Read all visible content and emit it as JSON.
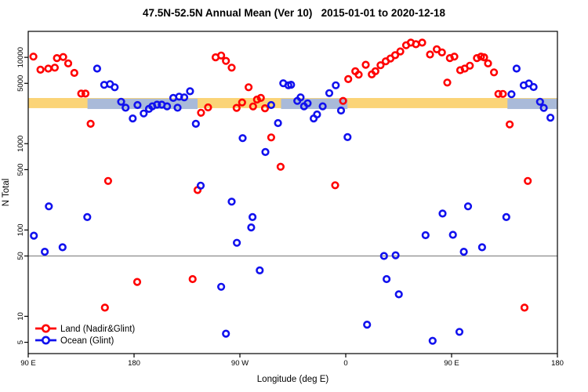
{
  "title": "47.5N-52.5N Annual Mean (Ver 10)   2015-01-01 to 2020-12-18",
  "colors": {
    "land": "#FF0000",
    "ocean": "#1111EE",
    "land_band": "#FBD477",
    "ocean_band": "#A9BAD9",
    "reference_line": "#8C8C8C",
    "axis": "#000000",
    "background": "#FFFFFF"
  },
  "chart_data": {
    "type": "scatter",
    "title": "47.5N-52.5N Annual Mean (Ver 10)   2015-01-01 to 2020-12-18",
    "xlabel": "Longitude (deg E)",
    "ylabel": "N Total",
    "y_scale": "log",
    "ylim": [
      3.7,
      20000
    ],
    "xlim": [
      90,
      540
    ],
    "x_axis_note": "longitude wraps: 90E eastward around the globe to 180",
    "x_ticks": [
      {
        "pos": 90,
        "label": "90 E"
      },
      {
        "pos": 180,
        "label": "180"
      },
      {
        "pos": 270,
        "label": "90 W"
      },
      {
        "pos": 360,
        "label": "0"
      },
      {
        "pos": 450,
        "label": "90 E"
      },
      {
        "pos": 540,
        "label": "180"
      }
    ],
    "y_ticks": [
      5,
      10,
      50,
      100,
      500,
      1000,
      5000,
      10000
    ],
    "reference_line": {
      "value": 50
    },
    "bands": {
      "land_reference_band": {
        "value_range": [
          2580,
          3380
        ],
        "x_range": [
          90,
          540
        ]
      },
      "ocean_reference_band": {
        "value_range": [
          2520,
          3320
        ],
        "segments": [
          [
            140.4,
            234
          ],
          [
            305,
            361.5
          ],
          [
            497.5,
            540
          ]
        ]
      }
    },
    "legend": {
      "position": "bottom-left"
    },
    "series": [
      {
        "name": "Land (Nadir&Glint)",
        "marker": "open-circle",
        "points": [
          [
            94.4,
            10200
          ],
          [
            100.4,
            7200
          ],
          [
            107.1,
            7400
          ],
          [
            112.6,
            7600
          ],
          [
            114.4,
            9800
          ],
          [
            119.7,
            10100
          ],
          [
            124,
            8500
          ],
          [
            129.2,
            6600
          ],
          [
            135.1,
            3800
          ],
          [
            138.7,
            3800
          ],
          [
            143.1,
            1700
          ],
          [
            155.2,
            12.6
          ],
          [
            157.9,
            370
          ],
          [
            182.7,
            25
          ],
          [
            229.8,
            27
          ],
          [
            234,
            290
          ],
          [
            236.9,
            2280
          ],
          [
            242.9,
            2630
          ],
          [
            249.3,
            10000
          ],
          [
            254.1,
            10500
          ],
          [
            258.1,
            9100
          ],
          [
            263,
            7600
          ],
          [
            267.2,
            2600
          ],
          [
            271.9,
            3000
          ],
          [
            277.4,
            4500
          ],
          [
            281.2,
            2700
          ],
          [
            284.5,
            3240
          ],
          [
            287.8,
            3390
          ],
          [
            291.3,
            2570
          ],
          [
            296.6,
            1180
          ],
          [
            304.6,
            540
          ],
          [
            351,
            330
          ],
          [
            357.7,
            3130
          ],
          [
            362.1,
            5600
          ],
          [
            368.1,
            6900
          ],
          [
            371,
            6300
          ],
          [
            377,
            8200
          ],
          [
            382.1,
            6340
          ],
          [
            385.2,
            6900
          ],
          [
            389.6,
            8100
          ],
          [
            394,
            9000
          ],
          [
            398,
            9700
          ],
          [
            402,
            10600
          ],
          [
            406.4,
            11700
          ],
          [
            411.3,
            13800
          ],
          [
            415.3,
            14800
          ],
          [
            419.7,
            14200
          ],
          [
            425,
            14800
          ],
          [
            431.7,
            10800
          ],
          [
            437.4,
            12400
          ],
          [
            441.8,
            11400
          ],
          [
            446.3,
            5100
          ],
          [
            448.5,
            9800
          ],
          [
            452.3,
            10200
          ],
          [
            457.3,
            7100
          ],
          [
            461.1,
            7400
          ],
          [
            465.5,
            8000
          ],
          [
            471.5,
            9800
          ],
          [
            475,
            10200
          ],
          [
            477.7,
            10000
          ],
          [
            481,
            8500
          ],
          [
            486.1,
            6700
          ],
          [
            489.8,
            3770
          ],
          [
            493.6,
            3770
          ],
          [
            499.4,
            1670
          ],
          [
            512,
            12.6
          ],
          [
            514.8,
            370
          ]
        ]
      },
      {
        "name": "Ocean (Glint)",
        "marker": "open-circle",
        "points": [
          [
            94.8,
            86
          ],
          [
            104.1,
            56
          ],
          [
            107.5,
            188
          ],
          [
            119.2,
            63
          ],
          [
            140.2,
            141
          ],
          [
            148.6,
            7400
          ],
          [
            154.6,
            4800
          ],
          [
            159.5,
            4900
          ],
          [
            163.5,
            4500
          ],
          [
            169,
            3060
          ],
          [
            172.8,
            2610
          ],
          [
            178.9,
            1960
          ],
          [
            182.9,
            2800
          ],
          [
            188.2,
            2240
          ],
          [
            192.7,
            2530
          ],
          [
            195.5,
            2710
          ],
          [
            199.5,
            2830
          ],
          [
            203.5,
            2830
          ],
          [
            208.1,
            2710
          ],
          [
            213.3,
            3390
          ],
          [
            217,
            2610
          ],
          [
            218.3,
            3500
          ],
          [
            222.7,
            3440
          ],
          [
            227.6,
            4050
          ],
          [
            232.5,
            1700
          ],
          [
            236.7,
            326
          ],
          [
            254.1,
            22
          ],
          [
            258.1,
            6.3
          ],
          [
            263,
            213
          ],
          [
            267.4,
            71
          ],
          [
            272.3,
            1160
          ],
          [
            279.6,
            107
          ],
          [
            280.7,
            141
          ],
          [
            286.9,
            34
          ],
          [
            291.7,
            800
          ],
          [
            296.6,
            2800
          ],
          [
            302.4,
            1730
          ],
          [
            306.9,
            5010
          ],
          [
            311.2,
            4740
          ],
          [
            313.5,
            4810
          ],
          [
            318.8,
            3130
          ],
          [
            321.6,
            3440
          ],
          [
            324.5,
            2710
          ],
          [
            327.6,
            2930
          ],
          [
            332.7,
            1960
          ],
          [
            335.6,
            2180
          ],
          [
            340.4,
            2710
          ],
          [
            346,
            3850
          ],
          [
            351.5,
            4740
          ],
          [
            356,
            2420
          ],
          [
            361.5,
            1190
          ],
          [
            378.1,
            8
          ],
          [
            392.5,
            50
          ],
          [
            394.7,
            27
          ],
          [
            402.4,
            51
          ],
          [
            405.1,
            18
          ],
          [
            427.9,
            87
          ],
          [
            433.9,
            5.2
          ],
          [
            442.3,
            155
          ],
          [
            451.1,
            88
          ],
          [
            456.7,
            6.6
          ],
          [
            460.4,
            56
          ],
          [
            464,
            188
          ],
          [
            475.9,
            63
          ],
          [
            496.5,
            141
          ],
          [
            500.9,
            3740
          ],
          [
            505.3,
            7400
          ],
          [
            511.3,
            4740
          ],
          [
            515.7,
            4980
          ],
          [
            519.7,
            4530
          ],
          [
            525.2,
            3060
          ],
          [
            528.4,
            2600
          ],
          [
            534.1,
            2000
          ]
        ]
      }
    ]
  }
}
